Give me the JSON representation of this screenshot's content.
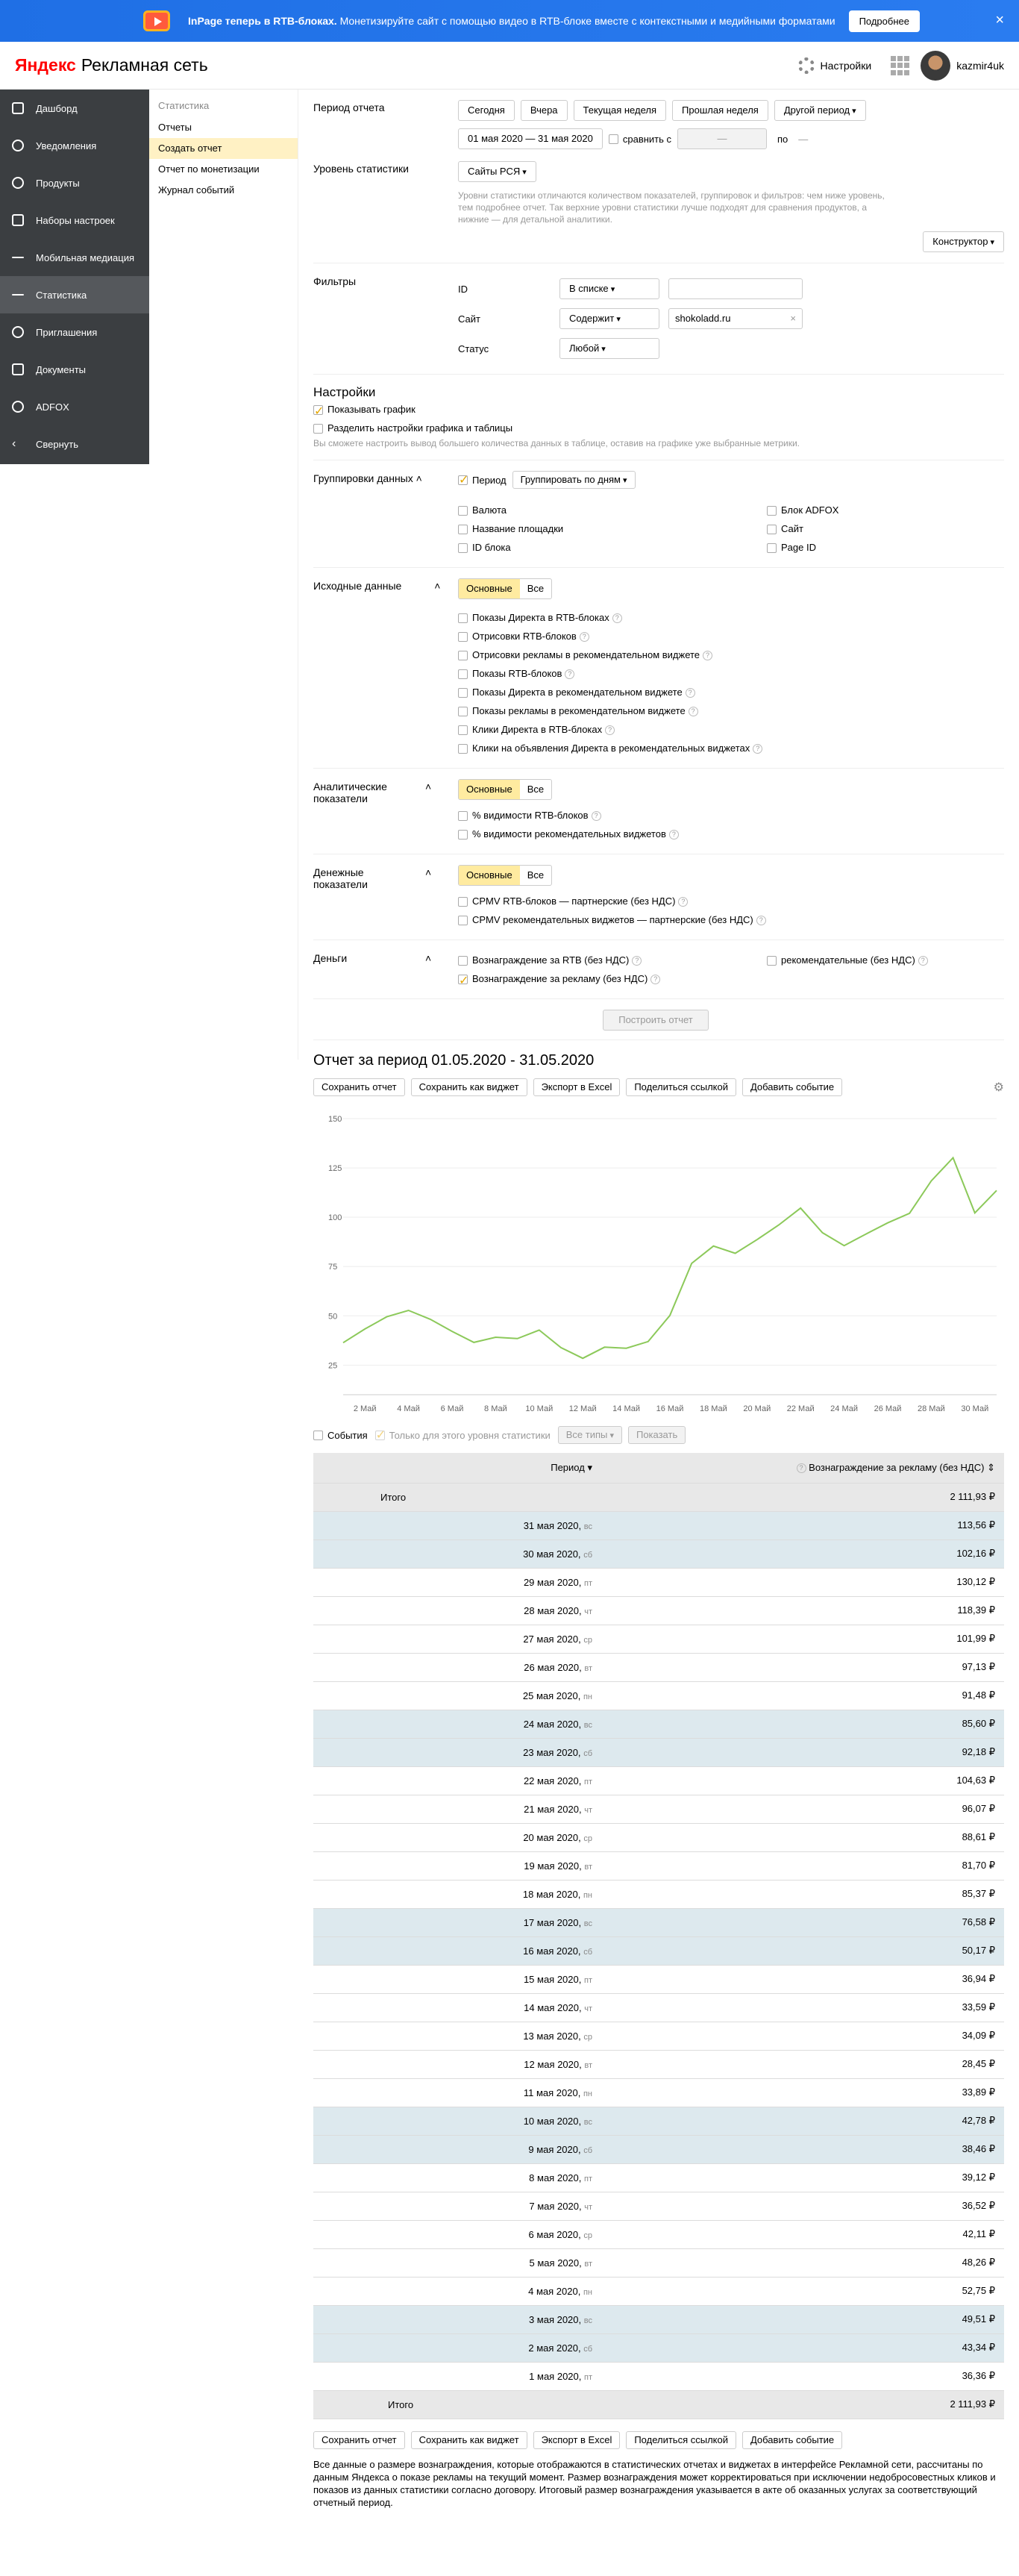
{
  "banner": {
    "bold": "InPage теперь в RTB-блоках.",
    "text": "Монетизируйте сайт с помощью видео в RTB-блоке вместе с контекстными и медийными форматами",
    "button": "Подробнее",
    "close": "×"
  },
  "header": {
    "logo_y": "Яндекс",
    "logo_rest": "Рекламная сеть",
    "settings": "Настройки",
    "user": "kazmir4uk"
  },
  "sidebar": [
    "Дашборд",
    "Уведомления",
    "Продукты",
    "Наборы настроек",
    "Мобильная медиация",
    "Статистика",
    "Приглашения",
    "Документы",
    "ADFOX",
    "Свернуть"
  ],
  "subnav": {
    "title": "Статистика",
    "items": [
      "Отчеты",
      "Создать отчет",
      "Отчет по монетизации",
      "Журнал событий"
    ]
  },
  "period": {
    "label": "Период отчета",
    "buttons": [
      "Сегодня",
      "Вчера",
      "Текущая неделя",
      "Прошлая неделя",
      "Другой период"
    ],
    "range": "01 мая 2020 — 31 мая 2020",
    "compare": "сравнить с",
    "cmp_from": "—",
    "cmp_to_label": "по",
    "cmp_to": "—"
  },
  "level": {
    "label": "Уровень статистики",
    "value": "Сайты РСЯ",
    "hint": "Уровни статистики отличаются количеством показателей, группировок и фильтров: чем ниже уровень, тем подробнее отчет. Так верхние уровни статистики лучше подходят для сравнения продуктов, а нижние — для детальной аналитики.",
    "constructor": "Конструктор"
  },
  "filters": {
    "label": "Фильтры",
    "rows": [
      {
        "name": "ID",
        "op": "В списке",
        "value": ""
      },
      {
        "name": "Сайт",
        "op": "Содержит",
        "value": "shokoladd.ru"
      },
      {
        "name": "Статус",
        "op": "Любой",
        "value": ""
      }
    ]
  },
  "settings": {
    "title": "Настройки",
    "show_chart": "Показывать график",
    "split": "Разделить настройки графика и таблицы",
    "hint": "Вы сможете настроить вывод большего количества данных в таблице, оставив на графике уже выбранные метрики."
  },
  "grouping": {
    "label": "Группировки данных",
    "period": "Период",
    "period_dd": "Группировать по дням",
    "left": [
      "Валюта",
      "Название площадки",
      "ID блока"
    ],
    "right": [
      "Блок ADFOX",
      "Сайт",
      "Page ID"
    ]
  },
  "source": {
    "label": "Исходные данные",
    "seg": [
      "Основные",
      "Все"
    ],
    "items": [
      "Показы Директа в RTB-блоках",
      "Отрисовки RTB-блоков",
      "Отрисовки рекламы в рекомендательном виджете",
      "Показы RTB-блоков",
      "Показы Директа в рекомендательном виджете",
      "Показы рекламы в рекомендательном виджете",
      "Клики Директа в RTB-блоках",
      "Клики на объявления Директа в рекомендательных виджетах"
    ]
  },
  "analytic": {
    "label1": "Аналитические",
    "label2": "показатели",
    "seg": [
      "Основные",
      "Все"
    ],
    "items": [
      "% видимости RTB-блоков",
      "% видимости рекомендательных виджетов"
    ]
  },
  "money_ind": {
    "label1": "Денежные",
    "label2": "показатели",
    "seg": [
      "Основные",
      "Все"
    ],
    "items": [
      "CPMV RTB-блоков — партнерские (без НДС)",
      "CPMV рекомендательных виджетов — партнерские (без НДС)"
    ]
  },
  "money": {
    "label": "Деньги",
    "items": [
      "Вознаграждение за RTB (без НДС)",
      "Вознаграждение за рекламу (без НДС)"
    ],
    "right": "рекомендательные (без НДС)"
  },
  "build": "Построить отчет",
  "report": {
    "title": "Отчет за период 01.05.2020 - 31.05.2020",
    "buttons": [
      "Сохранить отчет",
      "Сохранить как виджет",
      "Экспорт в Excel",
      "Поделиться ссылкой",
      "Добавить событие"
    ]
  },
  "chart_data": {
    "type": "line",
    "x": [
      "1 мая",
      "2 мая",
      "3 мая",
      "4 мая",
      "5 мая",
      "6 мая",
      "7 мая",
      "8 мая",
      "9 мая",
      "10 мая",
      "11 мая",
      "12 мая",
      "13 мая",
      "14 мая",
      "15 мая",
      "16 мая",
      "17 мая",
      "18 мая",
      "19 мая",
      "20 мая",
      "21 мая",
      "22 мая",
      "23 мая",
      "24 мая",
      "25 мая",
      "26 мая",
      "27 мая",
      "28 мая",
      "29 мая",
      "30 мая",
      "31 мая"
    ],
    "tick_labels": [
      "2 Май",
      "4 Май",
      "6 Май",
      "8 Май",
      "10 Май",
      "12 Май",
      "14 Май",
      "16 Май",
      "18 Май",
      "20 Май",
      "22 Май",
      "24 Май",
      "26 Май",
      "28 Май",
      "30 Май"
    ],
    "yticks": [
      25,
      50,
      75,
      100,
      125,
      150
    ],
    "ylim": [
      10,
      150
    ],
    "values": [
      36.36,
      43.34,
      49.51,
      52.75,
      48.26,
      42.11,
      36.52,
      39.12,
      38.46,
      42.78,
      33.89,
      28.45,
      34.09,
      33.59,
      36.94,
      50.17,
      76.58,
      85.37,
      81.7,
      88.61,
      96.07,
      104.63,
      92.18,
      85.6,
      91.48,
      97.13,
      101.99,
      118.39,
      130.12,
      102.16,
      113.56
    ],
    "color": "#8cc95a"
  },
  "events": {
    "label": "События",
    "only": "Только для этого уровня статистики",
    "types": "Все типы",
    "show": "Показать"
  },
  "table": {
    "col1": "Период",
    "col2": "Вознаграждение за рекламу (без НДС)",
    "total_label": "Итого",
    "total": "2 111,93 ₽",
    "rows": [
      {
        "d": "31 мая 2020,",
        "w": "вс",
        "v": "113,56 ₽",
        "we": true
      },
      {
        "d": "30 мая 2020,",
        "w": "сб",
        "v": "102,16 ₽",
        "we": true
      },
      {
        "d": "29 мая 2020,",
        "w": "пт",
        "v": "130,12 ₽",
        "we": false
      },
      {
        "d": "28 мая 2020,",
        "w": "чт",
        "v": "118,39 ₽",
        "we": false
      },
      {
        "d": "27 мая 2020,",
        "w": "ср",
        "v": "101,99 ₽",
        "we": false
      },
      {
        "d": "26 мая 2020,",
        "w": "вт",
        "v": "97,13 ₽",
        "we": false
      },
      {
        "d": "25 мая 2020,",
        "w": "пн",
        "v": "91,48 ₽",
        "we": false
      },
      {
        "d": "24 мая 2020,",
        "w": "вс",
        "v": "85,60 ₽",
        "we": true
      },
      {
        "d": "23 мая 2020,",
        "w": "сб",
        "v": "92,18 ₽",
        "we": true
      },
      {
        "d": "22 мая 2020,",
        "w": "пт",
        "v": "104,63 ₽",
        "we": false
      },
      {
        "d": "21 мая 2020,",
        "w": "чт",
        "v": "96,07 ₽",
        "we": false
      },
      {
        "d": "20 мая 2020,",
        "w": "ср",
        "v": "88,61 ₽",
        "we": false
      },
      {
        "d": "19 мая 2020,",
        "w": "вт",
        "v": "81,70 ₽",
        "we": false
      },
      {
        "d": "18 мая 2020,",
        "w": "пн",
        "v": "85,37 ₽",
        "we": false
      },
      {
        "d": "17 мая 2020,",
        "w": "вс",
        "v": "76,58 ₽",
        "we": true
      },
      {
        "d": "16 мая 2020,",
        "w": "сб",
        "v": "50,17 ₽",
        "we": true
      },
      {
        "d": "15 мая 2020,",
        "w": "пт",
        "v": "36,94 ₽",
        "we": false
      },
      {
        "d": "14 мая 2020,",
        "w": "чт",
        "v": "33,59 ₽",
        "we": false
      },
      {
        "d": "13 мая 2020,",
        "w": "ср",
        "v": "34,09 ₽",
        "we": false
      },
      {
        "d": "12 мая 2020,",
        "w": "вт",
        "v": "28,45 ₽",
        "we": false
      },
      {
        "d": "11 мая 2020,",
        "w": "пн",
        "v": "33,89 ₽",
        "we": false
      },
      {
        "d": "10 мая 2020,",
        "w": "вс",
        "v": "42,78 ₽",
        "we": true
      },
      {
        "d": "9 мая 2020,",
        "w": "сб",
        "v": "38,46 ₽",
        "we": true
      },
      {
        "d": "8 мая 2020,",
        "w": "пт",
        "v": "39,12 ₽",
        "we": false
      },
      {
        "d": "7 мая 2020,",
        "w": "чт",
        "v": "36,52 ₽",
        "we": false
      },
      {
        "d": "6 мая 2020,",
        "w": "ср",
        "v": "42,11 ₽",
        "we": false
      },
      {
        "d": "5 мая 2020,",
        "w": "вт",
        "v": "48,26 ₽",
        "we": false
      },
      {
        "d": "4 мая 2020,",
        "w": "пн",
        "v": "52,75 ₽",
        "we": false
      },
      {
        "d": "3 мая 2020,",
        "w": "вс",
        "v": "49,51 ₽",
        "we": true
      },
      {
        "d": "2 мая 2020,",
        "w": "сб",
        "v": "43,34 ₽",
        "we": true
      },
      {
        "d": "1 мая 2020,",
        "w": "пт",
        "v": "36,36 ₽",
        "we": false
      }
    ]
  },
  "footnote": "Все данные о размере вознаграждения, которые отображаются в статистических отчетах и виджетах в интерфейсе Рекламной сети, рассчитаны по данным Яндекса о показе рекламы на текущий момент. Размер вознаграждения может корректироваться при исключении недобросовестных кликов и показов из данных статистики согласно договору. Итоговый размер вознаграждения указывается в акте об оказанных услугах за соответствующий отчетный период."
}
